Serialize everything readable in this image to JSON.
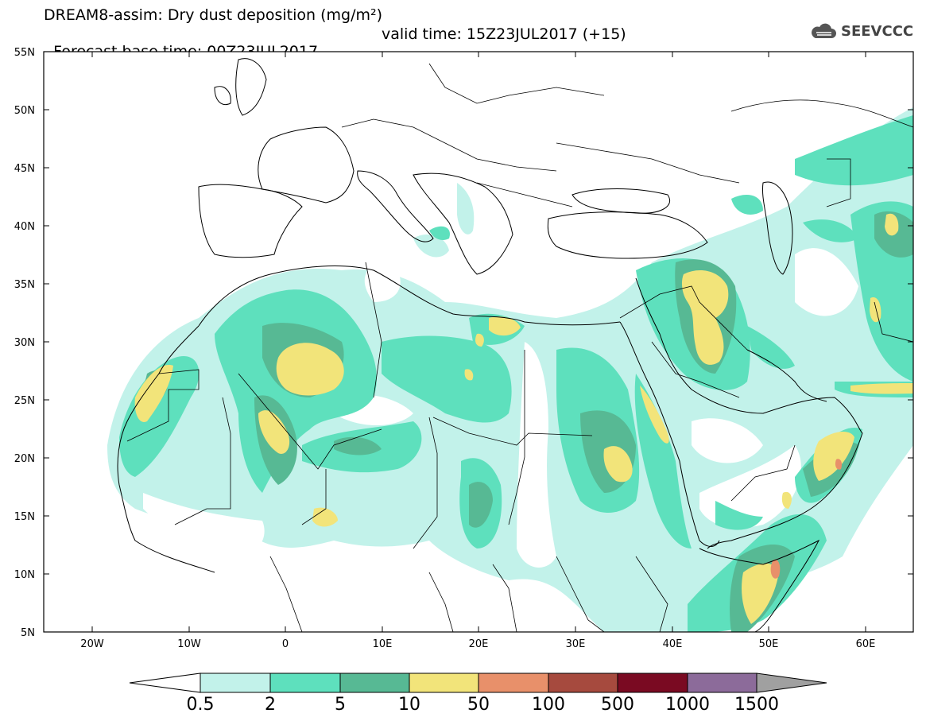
{
  "title": {
    "line1": "DREAM8-assim: Dry dust deposition (mg/m²)",
    "line2_base": "Forecast base time: 00Z23JUL2017",
    "line2_valid": "valid time: 15Z23JUL2017 (+15)"
  },
  "logo": {
    "text": "SEEVCCC",
    "icon": "cloud-icon"
  },
  "axes": {
    "lat_labels": [
      "55N",
      "50N",
      "45N",
      "40N",
      "35N",
      "30N",
      "25N",
      "20N",
      "15N",
      "10N",
      "5N"
    ],
    "lon_labels": [
      "20W",
      "10W",
      "0",
      "10E",
      "20E",
      "30E",
      "40E",
      "50E",
      "60E"
    ]
  },
  "colorbar": {
    "labels": [
      "0.5",
      "2",
      "5",
      "10",
      "50",
      "100",
      "500",
      "1000",
      "1500"
    ],
    "colors": [
      "#c2f2ea",
      "#5ee0bd",
      "#57b994",
      "#f2e47a",
      "#e8906a",
      "#a64a3e",
      "#7a0a22",
      "#8c6b9a",
      "#a0a0a0"
    ]
  },
  "map_colors": {
    "level1": "#c2f2ea",
    "level2": "#5ee0bd",
    "level3": "#57b994",
    "level4": "#f2e47a",
    "level5": "#e8906a"
  }
}
